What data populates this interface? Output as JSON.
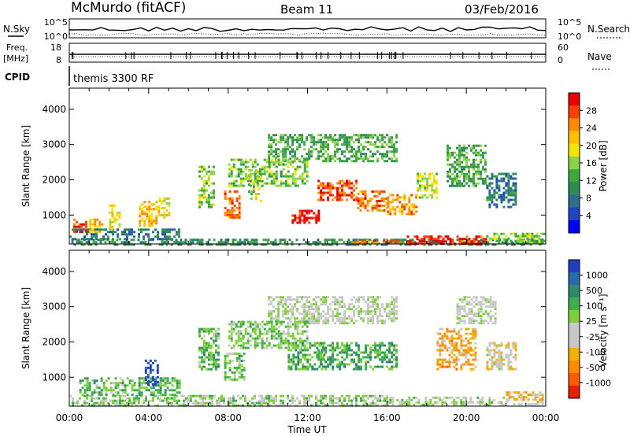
{
  "header": {
    "station": "McMurdo (fitACF)",
    "beam": "Beam 11",
    "date": "03/Feb/2016"
  },
  "top_panels": {
    "nsky_label": "N.Sky",
    "nsearch_label": "N.Search",
    "nsky_ticks": [
      "10^5",
      "10^0"
    ],
    "nsearch_ticks": [
      "10^5",
      "10^0"
    ],
    "freq_label_line1": "Freq.",
    "freq_label_line2": "[MHz]",
    "freq_ticks": [
      "18",
      "8"
    ],
    "nave_label": "Nave",
    "nave_ticks": [
      "60",
      "0"
    ],
    "cpid_label": "CPID",
    "cpid_text": "themis 3300 RF"
  },
  "x_axis": {
    "label": "Time UT",
    "ticks": [
      "00:00",
      "04:00",
      "08:00",
      "12:00",
      "16:00",
      "20:00",
      "00:00"
    ]
  },
  "power_colorbar": {
    "label": "Power [dB]",
    "ticks": [
      "28",
      "24",
      "20",
      "16",
      "12",
      "8",
      "4"
    ],
    "colors": [
      "#e60000",
      "#ff4000",
      "#ff8c00",
      "#ffc000",
      "#f2e600",
      "#8ad34a",
      "#3ea63e",
      "#2e8b57",
      "#2e6e8b",
      "#1f45c0",
      "#0000ff"
    ]
  },
  "velocity_colorbar": {
    "label": "Velocity [m s⁻¹]",
    "ticks": [
      "1000",
      "500",
      "100",
      "25",
      "-25",
      "-100",
      "-500",
      "-1000"
    ],
    "colors": [
      "#1f3fbf",
      "#2a6aa8",
      "#2e8b6a",
      "#3fae4a",
      "#7ecf3a",
      "#c8c8c8",
      "#c8c8c8",
      "#f0b000",
      "#ff8c00",
      "#ff5a00",
      "#e62000"
    ]
  },
  "chart_data": [
    {
      "type": "heatmap",
      "title": "",
      "xlabel": "Time UT",
      "ylabel": "Slant Range [km]",
      "xlim": [
        0,
        24
      ],
      "ylim": [
        180,
        4600
      ],
      "yticks": [
        "4000",
        "3000",
        "2000",
        "1000"
      ],
      "colorbar_label": "Power [dB]",
      "crange": [
        0,
        30
      ],
      "regions": [
        {
          "t0": 0.1,
          "t1": 23.9,
          "r0": 190,
          "r1": 330,
          "value": 10
        },
        {
          "t0": 17.0,
          "t1": 21.0,
          "r0": 200,
          "r1": 420,
          "value": 28
        },
        {
          "t0": 14.0,
          "t1": 17.0,
          "r0": 200,
          "r1": 300,
          "value": 24
        },
        {
          "t0": 21.0,
          "t1": 23.9,
          "r0": 200,
          "r1": 500,
          "value": 14
        },
        {
          "t0": 0.0,
          "t1": 5.5,
          "r0": 340,
          "r1": 620,
          "value": 8
        },
        {
          "t0": 0.2,
          "t1": 0.9,
          "r0": 500,
          "r1": 900,
          "value": 26
        },
        {
          "t0": 1.0,
          "t1": 1.6,
          "r0": 550,
          "r1": 900,
          "value": 20
        },
        {
          "t0": 2.0,
          "t1": 2.5,
          "r0": 600,
          "r1": 1300,
          "value": 18
        },
        {
          "t0": 3.5,
          "t1": 4.5,
          "r0": 700,
          "r1": 1400,
          "value": 20
        },
        {
          "t0": 4.5,
          "t1": 5.0,
          "r0": 900,
          "r1": 1500,
          "value": 18
        },
        {
          "t0": 6.5,
          "t1": 7.3,
          "r0": 1200,
          "r1": 2400,
          "value": 14
        },
        {
          "t0": 7.8,
          "t1": 8.6,
          "r0": 900,
          "r1": 1700,
          "value": 24
        },
        {
          "t0": 9.0,
          "t1": 9.6,
          "r0": 1400,
          "r1": 2300,
          "value": 16
        },
        {
          "t0": 11.2,
          "t1": 12.6,
          "r0": 750,
          "r1": 1150,
          "value": 28
        },
        {
          "t0": 12.5,
          "t1": 14.5,
          "r0": 1400,
          "r1": 2000,
          "value": 26
        },
        {
          "t0": 14.5,
          "t1": 16.0,
          "r0": 1100,
          "r1": 1700,
          "value": 24
        },
        {
          "t0": 16.0,
          "t1": 17.5,
          "r0": 1000,
          "r1": 1600,
          "value": 22
        },
        {
          "t0": 17.5,
          "t1": 18.5,
          "r0": 1500,
          "r1": 2200,
          "value": 16
        },
        {
          "t0": 10.0,
          "t1": 16.5,
          "r0": 2500,
          "r1": 3300,
          "value": 12
        },
        {
          "t0": 8.0,
          "t1": 12.0,
          "r0": 1800,
          "r1": 2600,
          "value": 14
        },
        {
          "t0": 19.0,
          "t1": 21.0,
          "r0": 1800,
          "r1": 3000,
          "value": 12
        },
        {
          "t0": 21.0,
          "t1": 22.5,
          "r0": 1200,
          "r1": 2200,
          "value": 8
        }
      ]
    },
    {
      "type": "heatmap",
      "title": "",
      "xlabel": "Time UT",
      "ylabel": "Slant Range [km]",
      "xlim": [
        0,
        24
      ],
      "ylim": [
        180,
        4600
      ],
      "yticks": [
        "4000",
        "3000",
        "2000",
        "1000"
      ],
      "colorbar_label": "Velocity [m s⁻¹]",
      "crange": [
        -1000,
        1000
      ],
      "regions": [
        {
          "t0": 0.0,
          "t1": 16.0,
          "r0": 200,
          "r1": 500,
          "value": 150
        },
        {
          "t0": 16.0,
          "t1": 22.0,
          "r0": 200,
          "r1": 450,
          "value": 80
        },
        {
          "t0": 22.0,
          "t1": 23.9,
          "r0": 200,
          "r1": 600,
          "value": -300
        },
        {
          "t0": 0.5,
          "t1": 5.5,
          "r0": 500,
          "r1": 1000,
          "value": 300
        },
        {
          "t0": 3.8,
          "t1": 4.4,
          "r0": 800,
          "r1": 1500,
          "value": 900
        },
        {
          "t0": 6.5,
          "t1": 7.5,
          "r0": 1200,
          "r1": 2400,
          "value": 300
        },
        {
          "t0": 7.8,
          "t1": 8.8,
          "r0": 900,
          "r1": 1700,
          "value": 250
        },
        {
          "t0": 11.0,
          "t1": 12.8,
          "r0": 1200,
          "r1": 2000,
          "value": 350
        },
        {
          "t0": 12.5,
          "t1": 16.5,
          "r0": 1200,
          "r1": 2000,
          "value": 400
        },
        {
          "t0": 10.0,
          "t1": 16.5,
          "r0": 2500,
          "r1": 3300,
          "value": 0
        },
        {
          "t0": 8.0,
          "t1": 12.0,
          "r0": 1800,
          "r1": 2600,
          "value": 200
        },
        {
          "t0": 18.5,
          "t1": 20.5,
          "r0": 1200,
          "r1": 2400,
          "value": -400
        },
        {
          "t0": 19.5,
          "t1": 21.5,
          "r0": 2500,
          "r1": 3300,
          "value": 0
        },
        {
          "t0": 21.0,
          "t1": 22.5,
          "r0": 1200,
          "r1": 2000,
          "value": -150
        }
      ]
    }
  ]
}
